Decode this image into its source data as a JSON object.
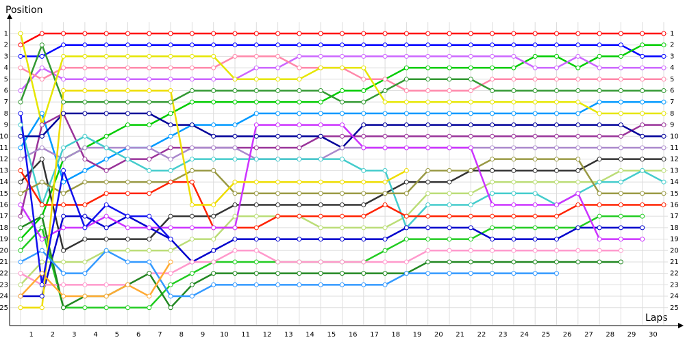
{
  "chart_data": {
    "type": "line",
    "ylabel": "Position",
    "xlabel": "Laps",
    "x": [
      0,
      1,
      2,
      3,
      4,
      5,
      6,
      7,
      8,
      9,
      10,
      11,
      12,
      13,
      14,
      15,
      16,
      17,
      18,
      19,
      20,
      21,
      22,
      23,
      24,
      25,
      26,
      27,
      28,
      29,
      30
    ],
    "xlim": [
      -0.5,
      30.5
    ],
    "xticks": [
      {
        "value": 0.5,
        "label": "1"
      },
      {
        "value": 1.5,
        "label": "2"
      },
      {
        "value": 2.5,
        "label": "3"
      },
      {
        "value": 3.5,
        "label": "4"
      },
      {
        "value": 4.5,
        "label": "5"
      },
      {
        "value": 5.5,
        "label": "6"
      },
      {
        "value": 6.5,
        "label": "7"
      },
      {
        "value": 7.5,
        "label": "8"
      },
      {
        "value": 8.5,
        "label": "9"
      },
      {
        "value": 9.5,
        "label": "10"
      },
      {
        "value": 10.5,
        "label": "11"
      },
      {
        "value": 11.5,
        "label": "12"
      },
      {
        "value": 12.5,
        "label": "13"
      },
      {
        "value": 13.5,
        "label": "14"
      },
      {
        "value": 14.5,
        "label": "15"
      },
      {
        "value": 15.5,
        "label": "16"
      },
      {
        "value": 16.5,
        "label": "17"
      },
      {
        "value": 17.5,
        "label": "18"
      },
      {
        "value": 18.5,
        "label": "19"
      },
      {
        "value": 19.5,
        "label": "20"
      },
      {
        "value": 20.5,
        "label": "21"
      },
      {
        "value": 21.5,
        "label": "22"
      },
      {
        "value": 22.5,
        "label": "23"
      },
      {
        "value": 23.5,
        "label": "24"
      },
      {
        "value": 24.5,
        "label": "25"
      },
      {
        "value": 25.5,
        "label": "26"
      },
      {
        "value": 26.5,
        "label": "27"
      },
      {
        "value": 27.5,
        "label": "28"
      },
      {
        "value": 28.5,
        "label": "29"
      },
      {
        "value": 29.5,
        "label": "30"
      }
    ],
    "ylim": [
      26.5,
      0
    ],
    "yticks": [
      1,
      2,
      3,
      4,
      5,
      6,
      7,
      8,
      9,
      10,
      11,
      12,
      13,
      14,
      15,
      16,
      17,
      18,
      19,
      20,
      21,
      22,
      23,
      24,
      25
    ],
    "grid": true,
    "series": [
      {
        "color": "#ff0000",
        "values": [
          2,
          1,
          1,
          1,
          1,
          1,
          1,
          1,
          1,
          1,
          1,
          1,
          1,
          1,
          1,
          1,
          1,
          1,
          1,
          1,
          1,
          1,
          1,
          1,
          1,
          1,
          1,
          1,
          1,
          1,
          1
        ]
      },
      {
        "color": "#0000ff",
        "values": [
          3,
          3,
          2,
          2,
          2,
          2,
          2,
          2,
          2,
          2,
          2,
          2,
          2,
          2,
          2,
          2,
          2,
          2,
          2,
          2,
          2,
          2,
          2,
          2,
          2,
          2,
          2,
          2,
          2,
          3,
          3
        ]
      },
      {
        "color": "#00cc00",
        "values": [
          19,
          17,
          12,
          11,
          10,
          9,
          9,
          8,
          7,
          7,
          7,
          7,
          7,
          7,
          7,
          6,
          6,
          5,
          4,
          4,
          4,
          4,
          4,
          4,
          3,
          3,
          4,
          3,
          3,
          2,
          2
        ]
      },
      {
        "color": "#cc66ff",
        "values": [
          6,
          4,
          5,
          5,
          5,
          5,
          5,
          5,
          5,
          5,
          5,
          4,
          4,
          3,
          3,
          3,
          3,
          3,
          3,
          3,
          3,
          3,
          3,
          3,
          4,
          4,
          3,
          4,
          4,
          4,
          4
        ]
      },
      {
        "color": "#ff88aa",
        "values": [
          4,
          5,
          4,
          4,
          4,
          4,
          4,
          4,
          4,
          4,
          3,
          3,
          3,
          4,
          4,
          4,
          5,
          5,
          6,
          6,
          6,
          6,
          5,
          5,
          5,
          5,
          5,
          5,
          5,
          5,
          5
        ]
      },
      {
        "color": "#339933",
        "values": [
          7,
          2,
          7,
          7,
          7,
          7,
          7,
          7,
          6,
          6,
          6,
          6,
          6,
          6,
          6,
          7,
          7,
          6,
          5,
          5,
          5,
          5,
          6,
          6,
          6,
          6,
          6,
          6,
          6,
          6,
          6
        ]
      },
      {
        "color": "#0099ff",
        "values": [
          11,
          8,
          14,
          13,
          12,
          11,
          11,
          10,
          9,
          9,
          9,
          8,
          8,
          8,
          8,
          8,
          8,
          8,
          8,
          8,
          8,
          8,
          8,
          8,
          8,
          8,
          8,
          7,
          7,
          7,
          7
        ]
      },
      {
        "color": "#e6e600",
        "values": [
          1,
          9,
          3,
          3,
          3,
          3,
          3,
          3,
          3,
          3,
          5,
          5,
          5,
          5,
          4,
          4,
          4,
          7,
          7,
          7,
          7,
          7,
          7,
          7,
          7,
          7,
          7,
          8,
          8,
          8,
          8
        ]
      },
      {
        "color": "#993399",
        "values": [
          17,
          9,
          8,
          12,
          13,
          12,
          12,
          11,
          11,
          11,
          11,
          11,
          11,
          11,
          10,
          10,
          10,
          10,
          10,
          10,
          10,
          10,
          10,
          10,
          10,
          10,
          10,
          10,
          10,
          9,
          9
        ]
      },
      {
        "color": "#000099",
        "values": [
          10,
          10,
          8,
          8,
          8,
          8,
          8,
          9,
          9,
          10,
          10,
          10,
          10,
          10,
          10,
          11,
          9,
          9,
          9,
          9,
          9,
          9,
          9,
          9,
          9,
          9,
          9,
          9,
          9,
          10,
          10
        ]
      },
      {
        "color": "#aa88cc",
        "values": [
          12,
          11,
          12,
          11,
          11,
          11,
          11,
          12,
          11,
          11,
          11,
          12,
          12,
          12,
          12,
          11,
          11,
          11,
          11,
          11,
          11,
          11,
          11,
          11,
          11,
          11,
          11,
          11,
          11,
          11,
          11
        ]
      },
      {
        "color": "#333333",
        "values": [
          14,
          12,
          20,
          19,
          19,
          19,
          19,
          17,
          17,
          17,
          16,
          16,
          16,
          16,
          16,
          16,
          16,
          15,
          14,
          14,
          14,
          13,
          13,
          13,
          13,
          13,
          13,
          12,
          12,
          12,
          12
        ]
      },
      {
        "color": "#bbdd77",
        "values": [
          23,
          21,
          21,
          21,
          20,
          20,
          20,
          20,
          19,
          19,
          17,
          17,
          17,
          17,
          18,
          18,
          18,
          18,
          17,
          15,
          15,
          15,
          14,
          14,
          14,
          14,
          14,
          14,
          13,
          13,
          13
        ]
      },
      {
        "color": "#44cccc",
        "values": [
          9,
          16,
          11,
          10,
          11,
          12,
          13,
          13,
          12,
          12,
          12,
          12,
          12,
          12,
          12,
          12,
          13,
          13,
          18,
          16,
          16,
          16,
          15,
          15,
          15,
          16,
          15,
          14,
          14,
          13,
          14
        ]
      },
      {
        "color": "#999944",
        "values": [
          15,
          14,
          15,
          14,
          14,
          14,
          14,
          14,
          13,
          13,
          15,
          15,
          15,
          15,
          15,
          15,
          15,
          15,
          15,
          13,
          13,
          13,
          12,
          12,
          12,
          12,
          12,
          15,
          15,
          15,
          15
        ]
      },
      {
        "color": "#ff2200",
        "values": [
          13,
          16,
          16,
          16,
          15,
          15,
          15,
          14,
          14,
          18,
          18,
          18,
          17,
          17,
          17,
          17,
          17,
          16,
          17,
          17,
          17,
          17,
          17,
          17,
          17,
          17,
          16,
          16,
          16,
          16,
          16
        ]
      },
      {
        "color": "#22cc22",
        "values": [
          20,
          18,
          25,
          25,
          25,
          25,
          25,
          23,
          22,
          21,
          21,
          21,
          21,
          21,
          21,
          21,
          21,
          20,
          19,
          19,
          19,
          19,
          18,
          18,
          18,
          18,
          18,
          17,
          17,
          17,
          null
        ]
      },
      {
        "color": "#0000cc",
        "values": [
          24,
          24,
          17,
          17,
          18,
          17,
          18,
          19,
          21,
          20,
          19,
          19,
          19,
          19,
          19,
          19,
          19,
          19,
          18,
          18,
          18,
          18,
          19,
          19,
          19,
          19,
          18,
          18,
          18,
          18,
          null
        ]
      },
      {
        "color": "#cc33ff",
        "values": [
          16,
          19,
          18,
          18,
          17,
          18,
          18,
          18,
          18,
          18,
          18,
          9,
          9,
          9,
          9,
          9,
          11,
          11,
          11,
          11,
          11,
          11,
          16,
          16,
          16,
          16,
          15,
          19,
          19,
          19,
          null
        ]
      },
      {
        "color": "#ff99cc",
        "values": [
          22,
          23,
          23,
          23,
          23,
          23,
          22,
          22,
          21,
          21,
          20,
          20,
          21,
          21,
          21,
          21,
          21,
          21,
          21,
          20,
          20,
          20,
          20,
          20,
          20,
          20,
          20,
          20,
          20,
          null,
          null
        ]
      },
      {
        "color": "#228822",
        "values": [
          18,
          17,
          25,
          24,
          24,
          23,
          22,
          25,
          23,
          22,
          22,
          22,
          22,
          22,
          22,
          22,
          22,
          22,
          22,
          21,
          21,
          21,
          21,
          21,
          21,
          21,
          21,
          21,
          21,
          null,
          null
        ]
      },
      {
        "color": "#3399ff",
        "values": [
          21,
          20,
          22,
          22,
          20,
          21,
          21,
          24,
          24,
          23,
          23,
          23,
          23,
          23,
          23,
          23,
          23,
          23,
          22,
          22,
          22,
          22,
          22,
          22,
          22,
          22,
          null,
          null,
          null,
          null,
          null
        ]
      },
      {
        "color": "#eedd00",
        "values": [
          25,
          25,
          6,
          6,
          6,
          6,
          6,
          6,
          16,
          16,
          14,
          14,
          14,
          14,
          14,
          14,
          14,
          14,
          13,
          null,
          null,
          null,
          null,
          null,
          null,
          null,
          null,
          null,
          null,
          null,
          null
        ]
      },
      {
        "color": "#ffaa33",
        "values": [
          24,
          22,
          24,
          24,
          24,
          23,
          24,
          21,
          null,
          null,
          null,
          null,
          null,
          null,
          null,
          null,
          null,
          null,
          null,
          null,
          null,
          null,
          null,
          null,
          null,
          null,
          null,
          null,
          null,
          null,
          null
        ]
      },
      {
        "color": "#1111ee",
        "values": [
          8,
          23,
          13,
          18,
          16,
          17,
          17,
          19,
          null,
          null,
          null,
          null,
          null,
          null,
          null,
          null,
          null,
          null,
          null,
          null,
          null,
          null,
          null,
          null,
          null,
          null,
          null,
          null,
          null,
          null,
          null
        ]
      }
    ]
  }
}
